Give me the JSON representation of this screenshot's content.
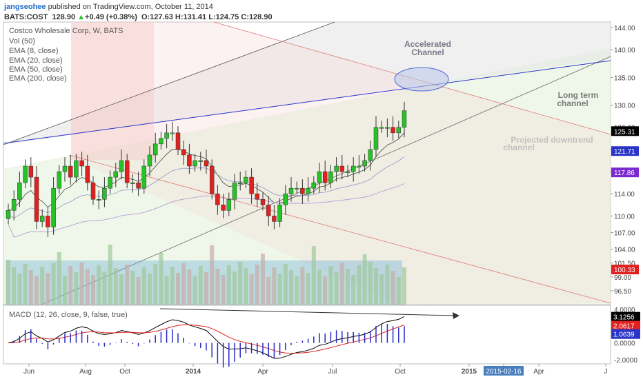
{
  "header": {
    "username": "jangseohee",
    "published_text": "published on TradingView.com, October 11, 2014",
    "symbol": "BATS:COST",
    "last": "128.90",
    "change": "+0.49 (+0.38%)",
    "o_label": "O:",
    "o_value": "127.63",
    "h_label": "H:",
    "h_value": "131.41",
    "l_label": "L:",
    "l_value": "124.75",
    "c_label": "C:",
    "c_value": "128.90"
  },
  "legend": [
    "Costco Wholesale Corp, W, BATS",
    "Vol (50)",
    "EMA (8, close)",
    "EMA (20, close)",
    "EMA (50, close)",
    "EMA (200, close)"
  ],
  "annotations": {
    "accelerated": [
      "Accelerated",
      "Channel"
    ],
    "long_term": [
      "Long term",
      "channel"
    ],
    "projected": [
      "Projected downtrend",
      "channel"
    ]
  },
  "macd_label": "MACD (12, 26, close, 9, false, true)",
  "colors": {
    "up": "#27c227",
    "down": "#e0211f",
    "ema_blue": "#4a5de0",
    "macd_line": "#000000",
    "signal_line": "#e0211f",
    "histogram": "#2727c8",
    "volume": "#5fa8d8"
  },
  "chart_data": {
    "type": "candlestick",
    "title": "Costco Wholesale Corp, W, BATS",
    "x_ticks": [
      "Jun",
      "Aug",
      "Oct",
      "2014",
      "Apr",
      "Jul",
      "Oct",
      "2015",
      "2015-02-16",
      "Apr",
      "J"
    ],
    "y_ticks": [
      "144.00",
      "140.00",
      "135.00",
      "130.00",
      "126.00",
      "122.00",
      "118.00",
      "114.00",
      "110.00",
      "107.00",
      "104.00",
      "101.50",
      "99.00",
      "96.50"
    ],
    "ylim": [
      94,
      145
    ],
    "price_tags": [
      {
        "value": "125.31",
        "price": 125.31,
        "color": "#000000"
      },
      {
        "value": "121.71",
        "price": 121.71,
        "color": "#2a34c8"
      },
      {
        "value": "117.86",
        "price": 117.86,
        "color": "#7a2ad0"
      },
      {
        "value": "100.33",
        "price": 100.33,
        "color": "#e0211f"
      }
    ],
    "closes": [
      111,
      113,
      116,
      119,
      117,
      109,
      110,
      108,
      115,
      118,
      119,
      117,
      120,
      119,
      116,
      113,
      113,
      115,
      117,
      118,
      120,
      116,
      116,
      115,
      119,
      121,
      123,
      124,
      125,
      125,
      122,
      121,
      119,
      120,
      120,
      119,
      114,
      112,
      111,
      113,
      116,
      116,
      117,
      114,
      113,
      112,
      110,
      109,
      112,
      114,
      115,
      115,
      114,
      115,
      116,
      118,
      116,
      118,
      119,
      118,
      118,
      119,
      119,
      120,
      122,
      126,
      126,
      126,
      125,
      126,
      129
    ],
    "volume_ylim": [
      0,
      1
    ],
    "macd": {
      "y_ticks": [
        "4.0000",
        "3.1256",
        "2.0617",
        "1.0639",
        "0.0000",
        "-2.0000"
      ],
      "ylim": [
        -2.5,
        4.5
      ],
      "value_tags": [
        {
          "value": "3.1256",
          "v": 3.1256,
          "color": "#000000"
        },
        {
          "value": "2.0617",
          "v": 2.0617,
          "color": "#e0211f"
        },
        {
          "value": "1.0639",
          "v": 1.0639,
          "color": "#2a34c8"
        }
      ]
    }
  }
}
